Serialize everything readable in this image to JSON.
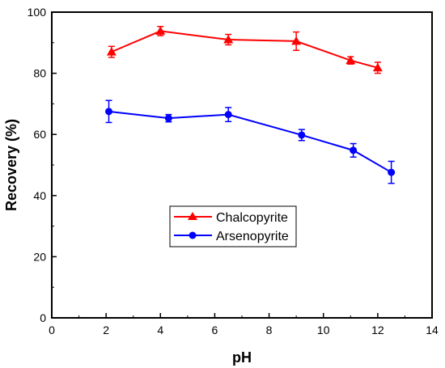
{
  "chart_data": {
    "type": "line",
    "title": "",
    "xlabel": "pH",
    "ylabel": "Recovery (%)",
    "xlim": [
      0,
      14
    ],
    "ylim": [
      0,
      100
    ],
    "x_ticks": [
      0,
      2,
      4,
      6,
      8,
      10,
      12,
      14
    ],
    "y_ticks": [
      0,
      20,
      40,
      60,
      80,
      100
    ],
    "grid": false,
    "legend_position": "center-right",
    "series": [
      {
        "name": "Chalcopyrite",
        "color": "#ff0000",
        "marker": "triangle",
        "x": [
          2.2,
          4.0,
          6.5,
          9.0,
          11.0,
          12.0
        ],
        "y": [
          87.0,
          93.8,
          91.0,
          90.5,
          84.2,
          81.8
        ],
        "err": [
          1.8,
          1.5,
          1.7,
          3.0,
          1.2,
          1.8
        ]
      },
      {
        "name": "Arsenopyrite",
        "color": "#0000ff",
        "marker": "circle",
        "x": [
          2.1,
          4.3,
          6.5,
          9.2,
          11.1,
          12.5
        ],
        "y": [
          67.5,
          65.3,
          66.5,
          59.8,
          54.8,
          47.6
        ],
        "err": [
          3.6,
          1.2,
          2.3,
          1.8,
          2.2,
          3.6
        ]
      }
    ]
  }
}
